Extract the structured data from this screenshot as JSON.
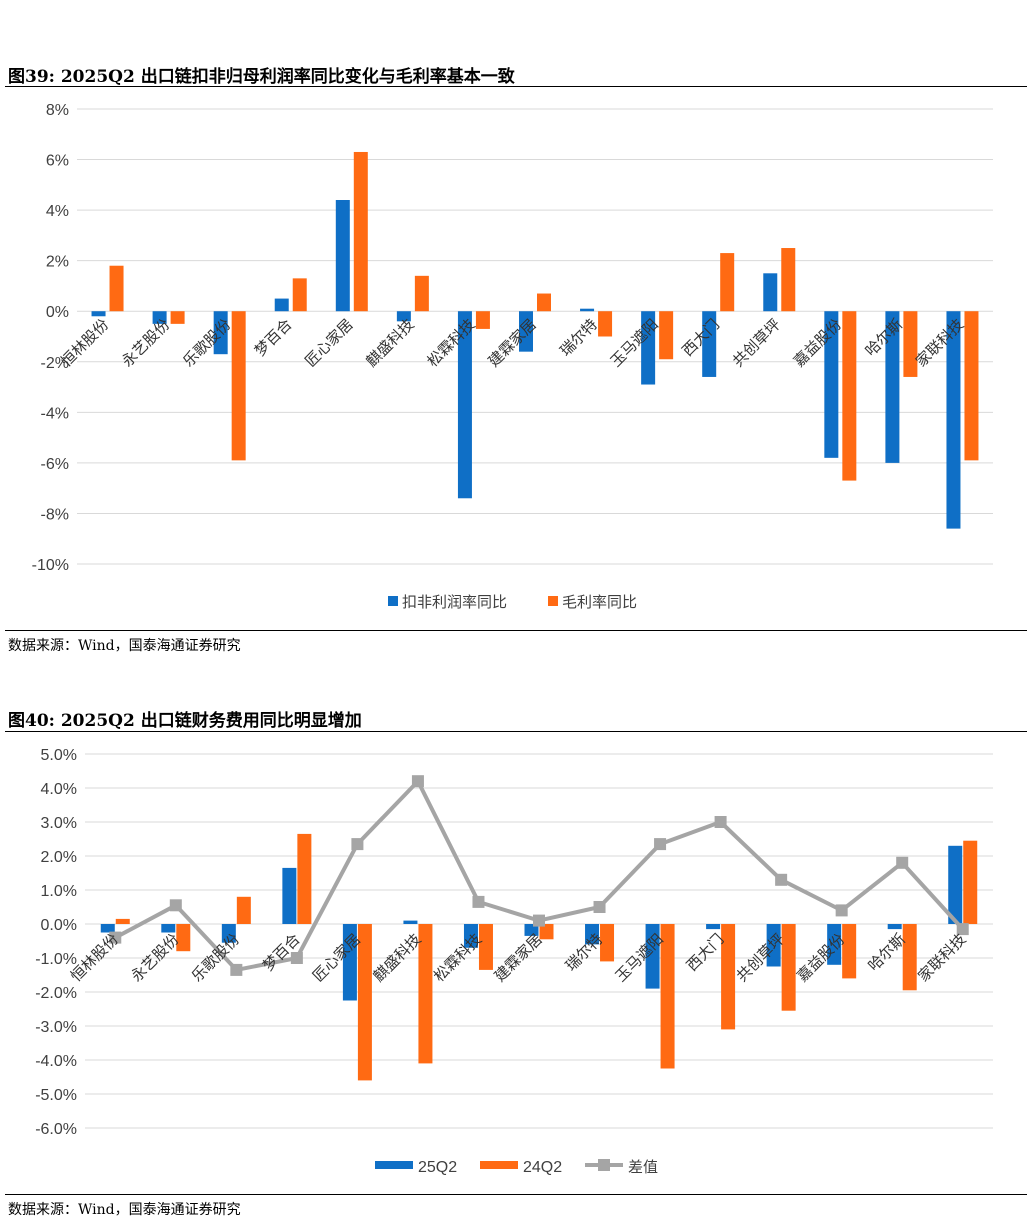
{
  "figures": [
    {
      "title": "图39:  2025Q2 出口链扣非归母利润率同比变化与毛利率基本一致",
      "source": "数据来源：Wind，国泰海通证券研究"
    },
    {
      "title": "图40:  2025Q2 出口链财务费用同比明显增加",
      "source": "数据来源：Wind，国泰海通证券研究"
    }
  ],
  "colors": {
    "blue": "#0F6FC6",
    "orange": "#FF6A13",
    "gray": "#A5A5A5",
    "grid": "#D9D9D9"
  },
  "chart_data": [
    {
      "type": "bar",
      "categories": [
        "恒林股份",
        "永艺股份",
        "乐歌股份",
        "梦百合",
        "匠心家居",
        "麒盛科技",
        "松霖科技",
        "建霖家居",
        "瑞尔特",
        "玉马遮阳",
        "西大门",
        "共创草坪",
        "嘉益股份",
        "哈尔斯",
        "家联科技"
      ],
      "series": [
        {
          "name": "扣非利润率同比",
          "values": [
            -0.2,
            -0.5,
            -1.7,
            0.5,
            4.4,
            -0.4,
            -7.4,
            -1.6,
            0.1,
            -2.9,
            -2.6,
            1.5,
            -5.8,
            -6.0,
            -8.6
          ]
        },
        {
          "name": "毛利率同比",
          "values": [
            1.8,
            -0.5,
            -5.9,
            1.3,
            6.3,
            1.4,
            -0.7,
            0.7,
            -1.0,
            -1.9,
            2.3,
            2.5,
            -6.7,
            -2.6,
            -5.9
          ]
        }
      ],
      "yticks": [
        "8%",
        "6%",
        "4%",
        "2%",
        "0%",
        "-2%",
        "-4%",
        "-6%",
        "-8%",
        "-10%"
      ],
      "ylim": [
        -10,
        8
      ]
    },
    {
      "type": "bar+line",
      "categories": [
        "恒林股份",
        "永艺股份",
        "乐歌股份",
        "梦百合",
        "匠心家居",
        "麒盛科技",
        "松霖科技",
        "建霖家居",
        "瑞尔特",
        "玉马遮阳",
        "西大门",
        "共创草坪",
        "嘉益股份",
        "哈尔斯",
        "家联科技"
      ],
      "series": [
        {
          "name": "25Q2",
          "values": [
            -0.25,
            -0.25,
            -0.55,
            1.65,
            -2.25,
            0.1,
            -0.7,
            -0.35,
            -0.6,
            -1.9,
            -0.15,
            -1.25,
            -1.2,
            -0.15,
            2.3
          ]
        },
        {
          "name": "24Q2",
          "values": [
            0.15,
            -0.8,
            0.8,
            2.65,
            -4.6,
            -4.1,
            -1.35,
            -0.45,
            -1.1,
            -4.25,
            -3.1,
            -2.55,
            -1.6,
            -1.95,
            2.45
          ]
        },
        {
          "name": "差值",
          "values": [
            -0.4,
            0.55,
            -1.35,
            -1.0,
            2.35,
            4.2,
            0.65,
            0.1,
            0.5,
            2.35,
            3.0,
            1.3,
            0.4,
            1.8,
            -0.15
          ]
        }
      ],
      "yticks": [
        "5.0%",
        "4.0%",
        "3.0%",
        "2.0%",
        "1.0%",
        "0.0%",
        "-1.0%",
        "-2.0%",
        "-3.0%",
        "-4.0%",
        "-5.0%",
        "-6.0%"
      ],
      "ylim": [
        -6,
        5
      ]
    }
  ]
}
